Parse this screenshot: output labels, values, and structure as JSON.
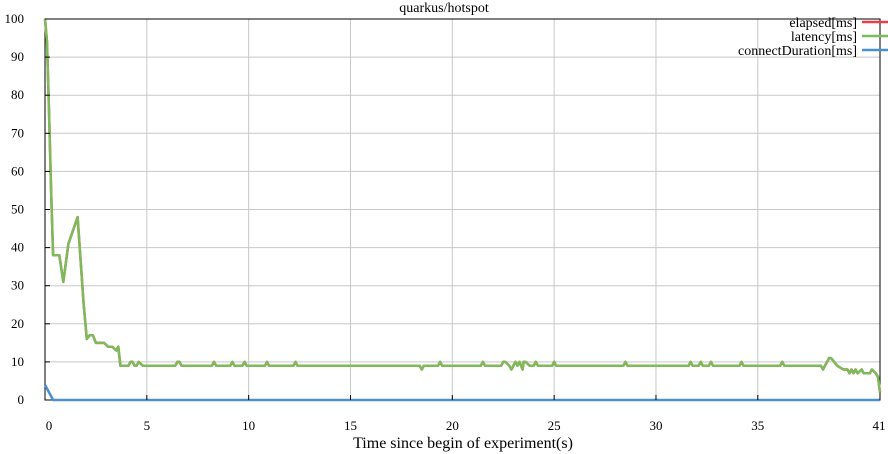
{
  "chart_data": {
    "type": "line",
    "title": "quarkus/hotspot",
    "xlabel": "Time since begin of experiment(s)",
    "ylabel": "",
    "xlim": [
      0,
      41
    ],
    "ylim": [
      0,
      100
    ],
    "x_ticks": [
      0,
      5,
      10,
      15,
      20,
      25,
      30,
      35,
      41
    ],
    "y_ticks": [
      0,
      10,
      20,
      30,
      40,
      50,
      60,
      70,
      80,
      90,
      100
    ],
    "grid": true,
    "legend_position": "top-right",
    "series": [
      {
        "name": "elapsed[ms]",
        "color": "#e8404a",
        "points": [
          [
            0,
            100
          ],
          [
            0.1,
            94
          ],
          [
            0.2,
            75
          ],
          [
            0.3,
            55
          ],
          [
            0.4,
            38
          ],
          [
            0.7,
            38
          ],
          [
            0.9,
            31
          ],
          [
            1.15,
            41
          ],
          [
            1.6,
            48
          ],
          [
            1.9,
            25
          ],
          [
            2.05,
            16
          ],
          [
            2.2,
            17
          ],
          [
            2.35,
            17
          ],
          [
            2.5,
            15
          ],
          [
            2.9,
            15
          ],
          [
            3.1,
            14
          ],
          [
            3.3,
            14
          ],
          [
            3.5,
            13
          ],
          [
            3.6,
            14
          ],
          [
            3.7,
            9
          ],
          [
            3.9,
            9
          ],
          [
            4.1,
            9
          ],
          [
            4.2,
            10
          ],
          [
            4.3,
            10
          ],
          [
            4.4,
            9
          ],
          [
            4.5,
            9
          ],
          [
            4.6,
            10
          ],
          [
            4.8,
            9
          ],
          [
            6.4,
            9
          ],
          [
            6.5,
            10
          ],
          [
            6.6,
            10
          ],
          [
            6.7,
            9
          ],
          [
            8.2,
            9
          ],
          [
            8.3,
            10
          ],
          [
            8.4,
            9
          ],
          [
            9.1,
            9
          ],
          [
            9.2,
            10
          ],
          [
            9.3,
            9
          ],
          [
            9.7,
            9
          ],
          [
            9.8,
            10
          ],
          [
            9.9,
            9
          ],
          [
            10.8,
            9
          ],
          [
            10.9,
            10
          ],
          [
            11,
            9
          ],
          [
            12.2,
            9
          ],
          [
            12.3,
            10
          ],
          [
            12.4,
            9
          ],
          [
            18.4,
            9
          ],
          [
            18.5,
            8
          ],
          [
            18.6,
            9
          ],
          [
            19.3,
            9
          ],
          [
            19.4,
            10
          ],
          [
            19.5,
            9
          ],
          [
            21.4,
            9
          ],
          [
            21.5,
            10
          ],
          [
            21.6,
            9
          ],
          [
            22.4,
            9
          ],
          [
            22.5,
            10
          ],
          [
            22.6,
            10
          ],
          [
            22.8,
            9
          ],
          [
            22.9,
            8
          ],
          [
            23.1,
            10
          ],
          [
            23.2,
            9
          ],
          [
            23.3,
            10
          ],
          [
            23.45,
            8
          ],
          [
            23.5,
            10
          ],
          [
            23.6,
            10
          ],
          [
            23.8,
            9
          ],
          [
            24,
            9
          ],
          [
            24.1,
            10
          ],
          [
            24.2,
            9
          ],
          [
            24.9,
            9
          ],
          [
            25,
            10
          ],
          [
            25.1,
            9
          ],
          [
            28.4,
            9
          ],
          [
            28.5,
            10
          ],
          [
            28.6,
            9
          ],
          [
            31.6,
            9
          ],
          [
            31.7,
            10
          ],
          [
            31.8,
            9
          ],
          [
            32.1,
            9
          ],
          [
            32.2,
            10
          ],
          [
            32.3,
            9
          ],
          [
            32.6,
            9
          ],
          [
            32.7,
            10
          ],
          [
            32.8,
            9
          ],
          [
            34.1,
            9
          ],
          [
            34.2,
            10
          ],
          [
            34.3,
            9
          ],
          [
            36.1,
            9
          ],
          [
            36.2,
            10
          ],
          [
            36.3,
            9
          ],
          [
            38.1,
            9
          ],
          [
            38.2,
            8
          ],
          [
            38.3,
            9
          ],
          [
            38.5,
            11
          ],
          [
            38.6,
            11
          ],
          [
            38.9,
            9
          ],
          [
            39.2,
            8
          ],
          [
            39.4,
            8
          ],
          [
            39.5,
            7
          ],
          [
            39.6,
            8
          ],
          [
            39.7,
            7
          ],
          [
            39.8,
            8
          ],
          [
            39.9,
            7
          ],
          [
            40.1,
            8
          ],
          [
            40.2,
            7
          ],
          [
            40.5,
            7
          ],
          [
            40.6,
            8
          ],
          [
            40.8,
            7
          ],
          [
            40.9,
            6
          ],
          [
            41,
            2
          ]
        ]
      },
      {
        "name": "latency[ms]",
        "color": "#7dbb5a",
        "points": [
          [
            0,
            100
          ],
          [
            0.1,
            94
          ],
          [
            0.2,
            75
          ],
          [
            0.3,
            55
          ],
          [
            0.4,
            38
          ],
          [
            0.7,
            38
          ],
          [
            0.9,
            31
          ],
          [
            1.15,
            41
          ],
          [
            1.6,
            48
          ],
          [
            1.9,
            25
          ],
          [
            2.05,
            16
          ],
          [
            2.2,
            17
          ],
          [
            2.35,
            17
          ],
          [
            2.5,
            15
          ],
          [
            2.9,
            15
          ],
          [
            3.1,
            14
          ],
          [
            3.3,
            14
          ],
          [
            3.5,
            13
          ],
          [
            3.6,
            14
          ],
          [
            3.7,
            9
          ],
          [
            3.9,
            9
          ],
          [
            4.1,
            9
          ],
          [
            4.2,
            10
          ],
          [
            4.3,
            10
          ],
          [
            4.4,
            9
          ],
          [
            4.5,
            9
          ],
          [
            4.6,
            10
          ],
          [
            4.8,
            9
          ],
          [
            6.4,
            9
          ],
          [
            6.5,
            10
          ],
          [
            6.6,
            10
          ],
          [
            6.7,
            9
          ],
          [
            8.2,
            9
          ],
          [
            8.3,
            10
          ],
          [
            8.4,
            9
          ],
          [
            9.1,
            9
          ],
          [
            9.2,
            10
          ],
          [
            9.3,
            9
          ],
          [
            9.7,
            9
          ],
          [
            9.8,
            10
          ],
          [
            9.9,
            9
          ],
          [
            10.8,
            9
          ],
          [
            10.9,
            10
          ],
          [
            11,
            9
          ],
          [
            12.2,
            9
          ],
          [
            12.3,
            10
          ],
          [
            12.4,
            9
          ],
          [
            18.4,
            9
          ],
          [
            18.5,
            8
          ],
          [
            18.6,
            9
          ],
          [
            19.3,
            9
          ],
          [
            19.4,
            10
          ],
          [
            19.5,
            9
          ],
          [
            21.4,
            9
          ],
          [
            21.5,
            10
          ],
          [
            21.6,
            9
          ],
          [
            22.4,
            9
          ],
          [
            22.5,
            10
          ],
          [
            22.6,
            10
          ],
          [
            22.8,
            9
          ],
          [
            22.9,
            8
          ],
          [
            23.1,
            10
          ],
          [
            23.2,
            9
          ],
          [
            23.3,
            10
          ],
          [
            23.45,
            8
          ],
          [
            23.5,
            10
          ],
          [
            23.6,
            10
          ],
          [
            23.8,
            9
          ],
          [
            24,
            9
          ],
          [
            24.1,
            10
          ],
          [
            24.2,
            9
          ],
          [
            24.9,
            9
          ],
          [
            25,
            10
          ],
          [
            25.1,
            9
          ],
          [
            28.4,
            9
          ],
          [
            28.5,
            10
          ],
          [
            28.6,
            9
          ],
          [
            31.6,
            9
          ],
          [
            31.7,
            10
          ],
          [
            31.8,
            9
          ],
          [
            32.1,
            9
          ],
          [
            32.2,
            10
          ],
          [
            32.3,
            9
          ],
          [
            32.6,
            9
          ],
          [
            32.7,
            10
          ],
          [
            32.8,
            9
          ],
          [
            34.1,
            9
          ],
          [
            34.2,
            10
          ],
          [
            34.3,
            9
          ],
          [
            36.1,
            9
          ],
          [
            36.2,
            10
          ],
          [
            36.3,
            9
          ],
          [
            38.1,
            9
          ],
          [
            38.2,
            8
          ],
          [
            38.3,
            9
          ],
          [
            38.5,
            11
          ],
          [
            38.6,
            11
          ],
          [
            38.9,
            9
          ],
          [
            39.2,
            8
          ],
          [
            39.4,
            8
          ],
          [
            39.5,
            7
          ],
          [
            39.6,
            8
          ],
          [
            39.7,
            7
          ],
          [
            39.8,
            8
          ],
          [
            39.9,
            7
          ],
          [
            40.1,
            8
          ],
          [
            40.2,
            7
          ],
          [
            40.5,
            7
          ],
          [
            40.6,
            8
          ],
          [
            40.8,
            7
          ],
          [
            40.9,
            6
          ],
          [
            41,
            2
          ]
        ]
      },
      {
        "name": "connectDuration[ms]",
        "color": "#4a8fd0",
        "points": [
          [
            0,
            4
          ],
          [
            0.4,
            0
          ],
          [
            41,
            0
          ]
        ]
      }
    ]
  }
}
